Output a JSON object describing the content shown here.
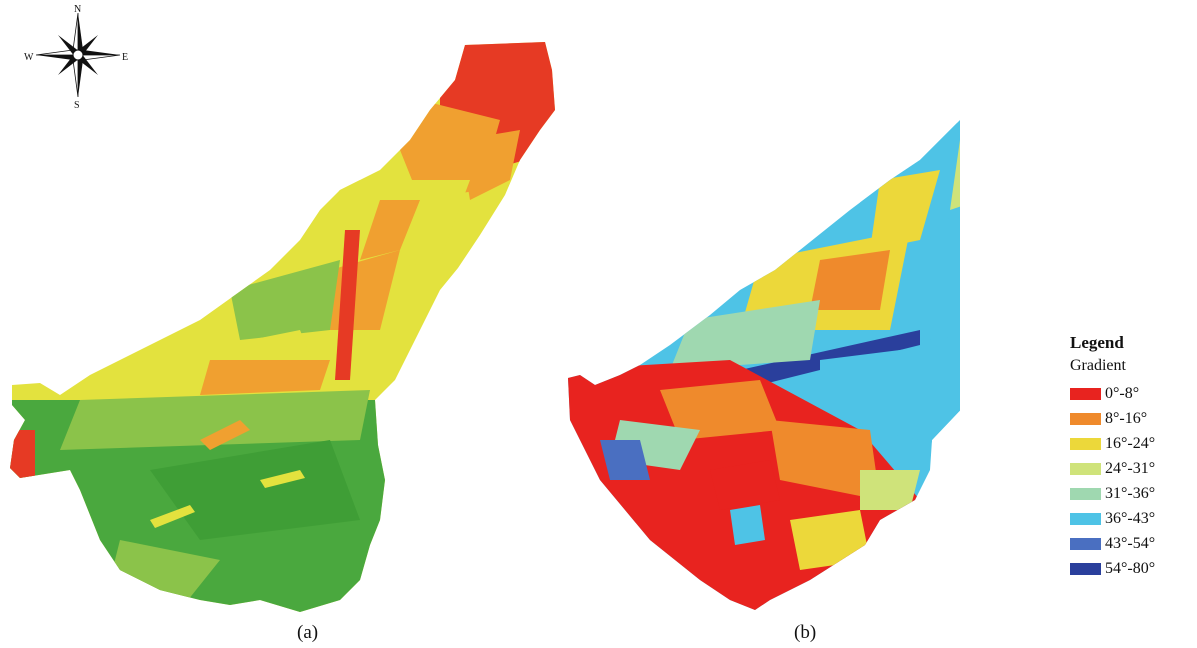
{
  "compass": {
    "n": "N",
    "s": "S",
    "e": "E",
    "w": "W"
  },
  "captions": {
    "a": "(a)",
    "b": "(b)"
  },
  "legend": {
    "title": "Legend",
    "subtitle": "Gradient",
    "items": [
      {
        "label": "0°-8°",
        "color": "#e8231f"
      },
      {
        "label": "8°-16°",
        "color": "#ef8a2c"
      },
      {
        "label": "16°-24°",
        "color": "#ecd83a"
      },
      {
        "label": "24°-31°",
        "color": "#cfe37a"
      },
      {
        "label": "31°-36°",
        "color": "#9fd8b0"
      },
      {
        "label": "36°-43°",
        "color": "#4ec3e6"
      },
      {
        "label": "43°-54°",
        "color": "#4a6fc1"
      },
      {
        "label": "54°-80°",
        "color": "#2a3f9c"
      }
    ]
  },
  "map_a_palette": {
    "green": "#4aa83e",
    "lightgreen": "#8bc34a",
    "yellow": "#e3e23e",
    "orange": "#f0a030",
    "red": "#e63a24"
  },
  "map_b_palette": {
    "red": "#e8231f",
    "orange": "#ef8a2c",
    "yellow": "#ecd83a",
    "lightgreen": "#cfe37a",
    "teal": "#9fd8b0",
    "cyan": "#4ec3e6",
    "blue": "#4a6fc1",
    "navy": "#2a3f9c"
  }
}
